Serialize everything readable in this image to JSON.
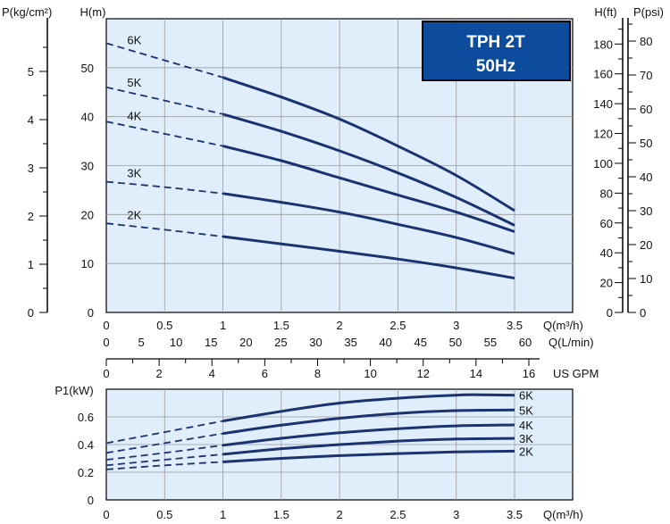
{
  "chart_data": [
    {
      "type": "line",
      "id": "head",
      "title_box": {
        "line1": "TPH 2T",
        "line2": "50Hz"
      },
      "xlabel": "Q(m³/h)",
      "ylabel": "H(m)",
      "xlim": [
        0,
        3.5
      ],
      "ylim": [
        0,
        60
      ],
      "x_ticks": [
        "0",
        "0.5",
        "1",
        "1.5",
        "2",
        "2.5",
        "3",
        "3.5"
      ],
      "y_ticks": [
        "0",
        "10",
        "20",
        "30",
        "40",
        "50"
      ],
      "grid": true,
      "secondary_axes": {
        "pressure_bar": {
          "label": "P(kg/cm²)",
          "ticks": [
            "0",
            "1",
            "2",
            "3",
            "4",
            "5"
          ]
        },
        "head_ft": {
          "label": "H(ft)",
          "ticks": [
            "0",
            "20",
            "40",
            "60",
            "80",
            "100",
            "120",
            "140",
            "160",
            "180"
          ]
        },
        "pressure_psi": {
          "label": "P(psi)",
          "ticks": [
            "0",
            "10",
            "20",
            "30",
            "40",
            "50",
            "60",
            "70",
            "80"
          ]
        },
        "flow_lmin": {
          "label": "Q(L/min)",
          "ticks": [
            "0",
            "5",
            "10",
            "15",
            "20",
            "25",
            "30",
            "35",
            "40",
            "45",
            "50",
            "55",
            "60"
          ]
        },
        "flow_usgpm": {
          "label": "US GPM",
          "ticks": [
            "0",
            "2",
            "4",
            "6",
            "8",
            "10",
            "12",
            "14",
            "16"
          ]
        }
      },
      "dashed_until_x": 1.0,
      "series": [
        {
          "name": "6K",
          "x": [
            0,
            0.5,
            1,
            1.5,
            2,
            2.5,
            3,
            3.5
          ],
          "y": [
            55,
            51.5,
            48,
            44,
            39.5,
            34,
            28,
            20.8
          ]
        },
        {
          "name": "5K",
          "x": [
            0,
            0.5,
            1,
            1.5,
            2,
            2.5,
            3,
            3.5
          ],
          "y": [
            46,
            43.3,
            40.5,
            37,
            33,
            28.5,
            23.5,
            17.8
          ]
        },
        {
          "name": "4K",
          "x": [
            0,
            0.5,
            1,
            1.5,
            2,
            2.5,
            3,
            3.5
          ],
          "y": [
            39,
            36.5,
            34,
            31,
            27.5,
            24,
            20.5,
            16.5
          ]
        },
        {
          "name": "3K",
          "x": [
            0,
            0.5,
            1,
            1.5,
            2,
            2.5,
            3,
            3.5
          ],
          "y": [
            26.7,
            25.6,
            24.3,
            22.5,
            20.5,
            18,
            15.3,
            12
          ]
        },
        {
          "name": "2K",
          "x": [
            0,
            0.5,
            1,
            1.5,
            2,
            2.5,
            3,
            3.5
          ],
          "y": [
            18.2,
            16.9,
            15.5,
            14,
            12.5,
            10.9,
            9.1,
            7
          ]
        }
      ]
    },
    {
      "type": "line",
      "id": "power",
      "xlabel": "Q(m³/h)",
      "ylabel": "P1(kW)",
      "xlim": [
        0,
        3.5
      ],
      "ylim": [
        0,
        0.8
      ],
      "x_ticks": [
        "0",
        "0.5",
        "1",
        "1.5",
        "2",
        "2.5",
        "3",
        "3.5"
      ],
      "y_ticks": [
        "0",
        "0.2",
        "0.4",
        "0.6"
      ],
      "grid": true,
      "dashed_until_x": 1.0,
      "series": [
        {
          "name": "6K",
          "x": [
            0,
            0.5,
            1,
            1.5,
            2,
            2.5,
            3,
            3.2,
            3.5
          ],
          "y": [
            0.41,
            0.49,
            0.57,
            0.64,
            0.7,
            0.735,
            0.757,
            0.76,
            0.757
          ]
        },
        {
          "name": "5K",
          "x": [
            0,
            0.5,
            1,
            1.5,
            2,
            2.5,
            3,
            3.5
          ],
          "y": [
            0.34,
            0.41,
            0.48,
            0.54,
            0.59,
            0.625,
            0.645,
            0.65
          ]
        },
        {
          "name": "4K",
          "x": [
            0,
            0.5,
            1,
            1.5,
            2,
            2.5,
            3,
            3.5
          ],
          "y": [
            0.29,
            0.34,
            0.395,
            0.445,
            0.485,
            0.515,
            0.535,
            0.542
          ]
        },
        {
          "name": "3K",
          "x": [
            0,
            0.5,
            1,
            1.5,
            2,
            2.5,
            3,
            3.5
          ],
          "y": [
            0.25,
            0.29,
            0.33,
            0.37,
            0.4,
            0.425,
            0.44,
            0.445
          ]
        },
        {
          "name": "2K",
          "x": [
            0,
            0.5,
            1,
            1.5,
            2,
            2.5,
            3,
            3.5
          ],
          "y": [
            0.22,
            0.25,
            0.275,
            0.3,
            0.32,
            0.335,
            0.347,
            0.352
          ]
        }
      ]
    }
  ],
  "colors": {
    "curve": "#1a3370",
    "plot_bg": "#dfeefa",
    "grid": "#9a9a9a",
    "title_bg": "#0d4c9c",
    "axis": "#000000"
  }
}
